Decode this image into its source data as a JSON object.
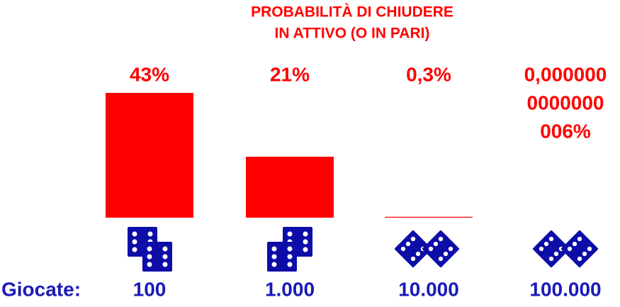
{
  "chart_data": {
    "type": "bar",
    "title": [
      "PROBABILITÀ DI CHIUDERE",
      "IN ATTIVO (O IN PARI)"
    ],
    "x_label": "Giocate:",
    "categories": [
      "100",
      "1.000",
      "10.000",
      "100.000"
    ],
    "values": [
      43,
      21,
      0.3,
      6e-16
    ],
    "value_labels": [
      "43%",
      "21%",
      "0,3%",
      [
        "0,000000",
        "0000000",
        "006%"
      ]
    ],
    "color": "#ff0000"
  }
}
